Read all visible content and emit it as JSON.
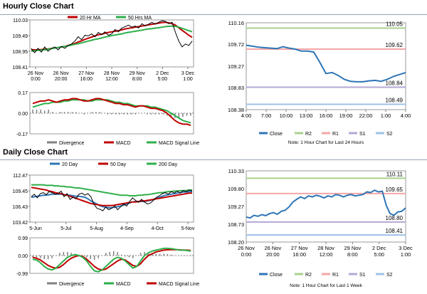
{
  "hourly": {
    "title": "Hourly Close Chart",
    "price": {
      "type": "line",
      "ylim": [
        108.41,
        110.03
      ],
      "yticks": [
        "110.03",
        "109.49",
        "108.95",
        "108.41"
      ],
      "xticks": [
        [
          "26 Nov",
          "0:00"
        ],
        [
          "26 Nov",
          "20:00"
        ],
        [
          "27 Nov",
          "16:00"
        ],
        [
          "28 Nov",
          "12:00"
        ],
        [
          "29 Nov",
          "8:00"
        ],
        [
          "2 Dec",
          "5:00"
        ],
        [
          "3 Dec",
          "1:00"
        ]
      ],
      "legend": [
        "20 Hr MA",
        "50 Hrs MA"
      ],
      "colors": {
        "price": "#000000",
        "ma20": "#c00000",
        "ma50": "#2eaf4a"
      },
      "series": {
        "price": [
          109.05,
          108.9,
          109.05,
          108.92,
          109.1,
          108.95,
          109.05,
          109.1,
          109.0,
          109.12,
          109.05,
          109.15,
          109.2,
          109.3,
          109.45,
          109.35,
          109.5,
          109.48,
          109.55,
          109.45,
          109.6,
          109.52,
          109.62,
          109.5,
          109.55,
          109.7,
          109.62,
          109.75,
          109.8,
          109.85,
          109.78,
          109.82,
          109.75,
          109.9,
          109.82,
          109.88,
          109.95,
          109.88,
          109.95,
          110.0,
          109.98,
          109.9,
          109.95,
          109.6,
          109.3,
          109.1,
          109.2,
          109.15,
          109.3
        ],
        "ma20": [
          109.0,
          109.0,
          109.0,
          109.01,
          109.02,
          109.03,
          109.04,
          109.06,
          109.08,
          109.1,
          109.12,
          109.15,
          109.18,
          109.22,
          109.27,
          109.31,
          109.36,
          109.4,
          109.44,
          109.48,
          109.52,
          109.54,
          109.57,
          109.6,
          109.62,
          109.64,
          109.66,
          109.69,
          109.72,
          109.74,
          109.76,
          109.78,
          109.8,
          109.82,
          109.84,
          109.86,
          109.88,
          109.9,
          109.92,
          109.94,
          109.95,
          109.93,
          109.9,
          109.85,
          109.76,
          109.67,
          109.59,
          109.5,
          109.43
        ],
        "ma50": [
          108.95,
          108.97,
          108.98,
          108.99,
          109.0,
          109.02,
          109.04,
          109.06,
          109.08,
          109.1,
          109.12,
          109.14,
          109.16,
          109.19,
          109.21,
          109.24,
          109.27,
          109.3,
          109.33,
          109.36,
          109.38,
          109.41,
          109.44,
          109.46,
          109.49,
          109.51,
          109.53,
          109.55,
          109.58,
          109.6,
          109.62,
          109.64,
          109.66,
          109.68,
          109.7,
          109.72,
          109.73,
          109.75,
          109.76,
          109.78,
          109.8,
          109.81,
          109.82,
          109.81,
          109.78,
          109.74,
          109.7,
          109.66,
          109.62
        ]
      }
    },
    "macd": {
      "ylim": [
        -0.17,
        0.17
      ],
      "yticks": [
        "0.17",
        "0.00",
        "-0.17"
      ],
      "zero_label_extra": "0.00",
      "legend": [
        "Divergence",
        "MACD",
        "MACD Signal Line"
      ],
      "colors": {
        "divergence": "#808080",
        "macd": "#c00000",
        "signal": "#2eaf4a"
      },
      "macd": [
        0.08,
        0.09,
        0.1,
        0.1,
        0.11,
        0.1,
        0.09,
        0.1,
        0.11,
        0.11,
        0.12,
        0.12,
        0.11,
        0.1,
        0.1,
        0.11,
        0.12,
        0.12,
        0.11,
        0.1,
        0.09,
        0.08,
        0.08,
        0.07,
        0.07,
        0.06,
        0.05,
        0.06,
        0.06,
        0.05,
        0.04,
        0.04,
        0.03,
        0.02,
        0.0,
        -0.03,
        -0.06,
        -0.08,
        -0.09,
        -0.09,
        -0.1
      ],
      "signal": [
        0.05,
        0.06,
        0.07,
        0.08,
        0.08,
        0.09,
        0.09,
        0.09,
        0.1,
        0.1,
        0.11,
        0.11,
        0.11,
        0.11,
        0.1,
        0.1,
        0.11,
        0.11,
        0.11,
        0.11,
        0.1,
        0.09,
        0.09,
        0.08,
        0.08,
        0.07,
        0.06,
        0.06,
        0.06,
        0.06,
        0.05,
        0.05,
        0.04,
        0.03,
        0.02,
        0.0,
        -0.02,
        -0.04,
        -0.06,
        -0.07,
        -0.08
      ],
      "divergence": [
        0.03,
        0.03,
        0.03,
        0.02,
        0.03,
        0.01,
        0.0,
        0.01,
        0.01,
        0.01,
        0.01,
        0.01,
        0.0,
        -0.01,
        0.0,
        0.01,
        0.01,
        0.01,
        0.0,
        -0.01,
        -0.01,
        -0.01,
        -0.01,
        -0.01,
        -0.01,
        -0.01,
        -0.01,
        0.0,
        0.0,
        -0.01,
        -0.01,
        -0.01,
        -0.01,
        -0.01,
        -0.02,
        -0.03,
        -0.04,
        -0.04,
        -0.03,
        -0.02,
        -0.02
      ]
    },
    "pivot": {
      "ylim": [
        108.38,
        110.16
      ],
      "yticks": [
        "110.16",
        "109.72",
        "109.27",
        "108.83",
        "108.38"
      ],
      "xticks": [
        "4:00",
        "7:00",
        "10:00",
        "13:00",
        "16:00",
        "19:00",
        "22:00",
        "1:00",
        "4:00"
      ],
      "levels": [
        {
          "name": "R2",
          "value": 110.05,
          "label": "110.05",
          "color": "#a9d18e"
        },
        {
          "name": "R1",
          "value": 109.62,
          "label": "109.62",
          "color": "#f4a6a6"
        },
        {
          "name": "S1",
          "value": 108.84,
          "label": "108.84",
          "color": "#b4a7d6"
        },
        {
          "name": "S2",
          "value": 108.49,
          "label": "108.49",
          "color": "#9dc3e6"
        }
      ],
      "close_color": "#2e75b6",
      "close": [
        109.7,
        109.68,
        109.66,
        109.65,
        109.64,
        109.63,
        109.67,
        109.64,
        109.62,
        109.58,
        109.58,
        109.56,
        109.35,
        109.12,
        109.14,
        109.08,
        109.0,
        108.96,
        108.95,
        108.95,
        108.97,
        108.98,
        108.96,
        109.0,
        109.06,
        109.1,
        109.14
      ],
      "legend": [
        "Close",
        "R2",
        "R1",
        "S1",
        "S2"
      ],
      "note": "Note: 1 Hour Chart for Last 24 Hours"
    }
  },
  "daily": {
    "title": "Daily Close Chart",
    "price": {
      "type": "line",
      "ylim": [
        103.42,
        112.47
      ],
      "yticks": [
        "112.47",
        "109.45",
        "106.43",
        "103.42"
      ],
      "xticks": [
        "5-Jun",
        "5-Jul",
        "5-Aug",
        "4-Sep",
        "4-Oct",
        "5-Nov"
      ],
      "legend": [
        "20 Day",
        "50 Day",
        "200 Day"
      ],
      "colors": {
        "price": "#000000",
        "ma20": "#2e75b6",
        "ma50": "#c00000",
        "ma200": "#2eaf4a"
      },
      "series": {
        "price": [
          108.3,
          108.8,
          108.1,
          108.9,
          109.1,
          108.7,
          109.3,
          109.1,
          108.8,
          108.9,
          109.4,
          108.3,
          108.9,
          107.8,
          108.2,
          107.9,
          108.8,
          109.0,
          108.6,
          108.9,
          108.3,
          106.9,
          106.1,
          105.9,
          105.6,
          106.3,
          105.8,
          106.1,
          106.5,
          105.8,
          106.4,
          106.9,
          106.5,
          107.4,
          108.1,
          107.6,
          107.2,
          107.8,
          107.3,
          106.9,
          107.1,
          107.6,
          108.2,
          108.5,
          108.9,
          109.1,
          108.8,
          109.3,
          109.0,
          109.4,
          109.0,
          109.5,
          109.3,
          109.6,
          109.4
        ],
        "ma20": [
          108.2,
          108.3,
          108.4,
          108.5,
          108.6,
          108.6,
          108.7,
          108.8,
          108.8,
          108.8,
          108.8,
          108.7,
          108.6,
          108.6,
          108.5,
          108.4,
          108.4,
          108.3,
          108.2,
          107.9,
          107.5,
          107.2,
          106.9,
          106.6,
          106.4,
          106.3,
          106.2,
          106.2,
          106.3,
          106.4,
          106.5,
          106.7,
          106.9,
          107.1,
          107.3,
          107.4,
          107.4,
          107.4,
          107.4,
          107.5,
          107.6,
          107.8,
          108.0,
          108.2,
          108.4,
          108.6,
          108.7,
          108.8,
          108.9,
          109.0,
          109.1,
          109.2,
          109.2,
          109.3,
          109.3
        ],
        "ma50": [
          110.1,
          110.0,
          109.9,
          109.8,
          109.7,
          109.6,
          109.4,
          109.3,
          109.1,
          109.0,
          108.9,
          108.7,
          108.6,
          108.4,
          108.2,
          108.0,
          107.8,
          107.6,
          107.4,
          107.2,
          107.0,
          106.9,
          106.8,
          106.7,
          106.6,
          106.6,
          106.6,
          106.6,
          106.7,
          106.8,
          106.9,
          107.0,
          107.1,
          107.2,
          107.3,
          107.3,
          107.4,
          107.5,
          107.5,
          107.6,
          107.7,
          107.8,
          107.9,
          108.0,
          108.1,
          108.2,
          108.3,
          108.4,
          108.5,
          108.6,
          108.7,
          108.8,
          108.9,
          109.0,
          109.0
        ],
        "ma200": [
          110.6,
          110.6,
          110.6,
          110.6,
          110.6,
          110.5,
          110.5,
          110.5,
          110.4,
          110.4,
          110.3,
          110.3,
          110.2,
          110.2,
          110.1,
          110.0,
          110.0,
          109.9,
          109.8,
          109.7,
          109.6,
          109.5,
          109.4,
          109.3,
          109.2,
          109.1,
          109.0,
          108.9,
          108.8,
          108.7,
          108.6,
          108.6,
          108.6,
          108.5,
          108.5,
          108.5,
          108.6,
          108.6,
          108.7,
          108.7,
          108.8,
          108.9,
          109.0,
          109.1,
          109.1,
          109.2,
          109.3,
          109.3,
          109.4,
          109.4,
          109.5,
          109.5,
          109.5,
          109.6,
          109.6
        ]
      }
    },
    "macd": {
      "ylim": [
        -0.99,
        0.99
      ],
      "yticks": [
        "0.99",
        "0.00",
        "-0.99"
      ],
      "legend": [
        "Divergence",
        "MACD",
        "MACD Signal Line"
      ],
      "colors": {
        "divergence": "#808080",
        "macd": "#2eaf4a",
        "signal": "#c00000"
      },
      "macd": [
        -0.2,
        -0.25,
        -0.4,
        -0.6,
        -0.75,
        -0.8,
        -0.7,
        -0.5,
        -0.3,
        -0.1,
        0.0,
        0.05,
        0.0,
        -0.1,
        -0.3,
        -0.6,
        -0.85,
        -0.9,
        -0.8,
        -0.6,
        -0.4,
        -0.2,
        -0.1,
        -0.15,
        -0.3,
        -0.5,
        -0.7,
        -0.6,
        -0.3,
        0.0,
        0.15,
        0.25,
        0.3,
        0.35,
        0.4,
        0.4,
        0.38,
        0.35,
        0.3,
        0.3,
        0.28,
        0.25
      ],
      "signal": [
        -0.1,
        -0.15,
        -0.25,
        -0.4,
        -0.55,
        -0.65,
        -0.7,
        -0.65,
        -0.5,
        -0.3,
        -0.15,
        -0.05,
        0.0,
        -0.05,
        -0.2,
        -0.4,
        -0.6,
        -0.75,
        -0.8,
        -0.75,
        -0.6,
        -0.45,
        -0.3,
        -0.2,
        -0.25,
        -0.4,
        -0.55,
        -0.6,
        -0.45,
        -0.2,
        0.0,
        0.1,
        0.2,
        0.25,
        0.3,
        0.32,
        0.33,
        0.33,
        0.32,
        0.31,
        0.3,
        0.28
      ],
      "divergence": [
        -0.1,
        -0.1,
        -0.15,
        -0.2,
        -0.2,
        -0.15,
        0.0,
        0.15,
        0.2,
        0.2,
        0.15,
        0.1,
        0.0,
        -0.05,
        -0.1,
        -0.2,
        -0.25,
        -0.15,
        0.0,
        0.15,
        0.2,
        0.25,
        0.2,
        0.05,
        -0.05,
        -0.1,
        -0.15,
        0.0,
        0.15,
        0.2,
        0.15,
        0.15,
        0.1,
        0.1,
        0.1,
        0.08,
        0.05,
        0.02,
        -0.02,
        -0.01,
        -0.02,
        -0.03
      ]
    },
    "pivot": {
      "ylim": [
        108.2,
        110.33
      ],
      "yticks": [
        "110.33",
        "109.80",
        "109.27",
        "108.73",
        "108.20"
      ],
      "xticks": [
        [
          "26 Nov",
          "0:00"
        ],
        [
          "26 Nov",
          "20:00"
        ],
        [
          "27 Nov",
          "16:00"
        ],
        [
          "28 Nov",
          "12:00"
        ],
        [
          "29 Nov",
          "8:00"
        ],
        [
          "2 Dec",
          "5:00"
        ],
        [
          "3 Dec",
          "1:00"
        ]
      ],
      "levels": [
        {
          "name": "R2",
          "value": 110.11,
          "label": "110.11",
          "color": "#a9d18e"
        },
        {
          "name": "R1",
          "value": 109.65,
          "label": "109.65",
          "color": "#f4a6a6"
        },
        {
          "name": "S1",
          "value": 108.8,
          "label": "108.80",
          "color": "#b4a7d6"
        },
        {
          "name": "S2",
          "value": 108.41,
          "label": "108.41",
          "color": "#9dc3e6"
        }
      ],
      "close_color": "#2e75b6",
      "close": [
        108.95,
        108.92,
        109.0,
        108.97,
        109.02,
        108.99,
        109.05,
        109.08,
        109.03,
        109.12,
        109.15,
        109.25,
        109.4,
        109.48,
        109.55,
        109.5,
        109.58,
        109.55,
        109.6,
        109.57,
        109.52,
        109.58,
        109.55,
        109.62,
        109.6,
        109.55,
        109.6,
        109.62,
        109.58,
        109.6,
        109.62,
        109.7,
        109.68,
        109.75,
        109.7,
        109.72,
        109.3,
        109.05,
        109.0,
        109.1,
        109.12,
        109.22
      ],
      "legend": [
        "Close",
        "R2",
        "R1",
        "S1",
        "S2"
      ],
      "note": "Note: 1 Hour Chart for Last 1 Week"
    }
  }
}
